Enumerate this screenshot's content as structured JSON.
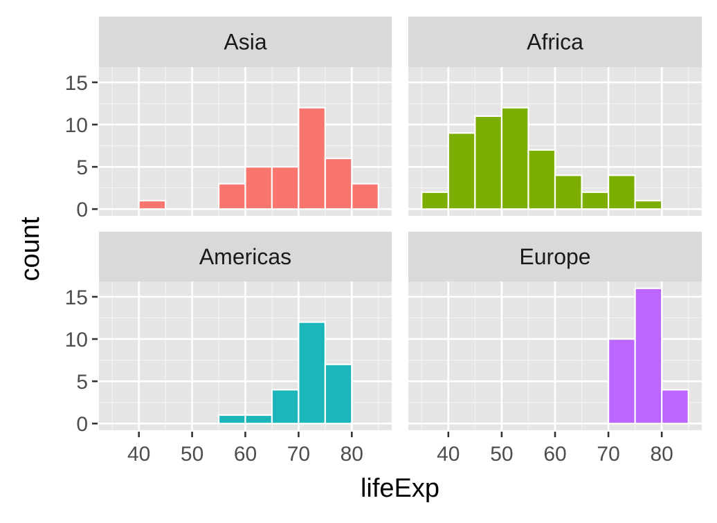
{
  "chart_data": {
    "type": "bar",
    "xlabel": "lifeExp",
    "ylabel": "count",
    "x_ticks": [
      40,
      50,
      60,
      70,
      80
    ],
    "y_ticks": [
      0,
      5,
      10,
      15
    ],
    "xlim": [
      32.5,
      87.5
    ],
    "ylim": [
      -0.8,
      16.8
    ],
    "bin_width": 5,
    "grid": true,
    "facets": [
      {
        "label": "Asia",
        "color": "#F8766D",
        "bins": [
          {
            "x0": 40,
            "x1": 45,
            "count": 1
          },
          {
            "x0": 55,
            "x1": 60,
            "count": 3
          },
          {
            "x0": 60,
            "x1": 65,
            "count": 5
          },
          {
            "x0": 65,
            "x1": 70,
            "count": 5
          },
          {
            "x0": 70,
            "x1": 75,
            "count": 12
          },
          {
            "x0": 75,
            "x1": 80,
            "count": 6
          },
          {
            "x0": 80,
            "x1": 85,
            "count": 3
          }
        ]
      },
      {
        "label": "Africa",
        "color": "#7CAE00",
        "bins": [
          {
            "x0": 35,
            "x1": 40,
            "count": 2
          },
          {
            "x0": 40,
            "x1": 45,
            "count": 9
          },
          {
            "x0": 45,
            "x1": 50,
            "count": 11
          },
          {
            "x0": 50,
            "x1": 55,
            "count": 12
          },
          {
            "x0": 55,
            "x1": 60,
            "count": 7
          },
          {
            "x0": 60,
            "x1": 65,
            "count": 4
          },
          {
            "x0": 65,
            "x1": 70,
            "count": 2
          },
          {
            "x0": 70,
            "x1": 75,
            "count": 4
          },
          {
            "x0": 75,
            "x1": 80,
            "count": 1
          }
        ]
      },
      {
        "label": "Americas",
        "color": "#1AB6BA",
        "bins": [
          {
            "x0": 55,
            "x1": 60,
            "count": 1
          },
          {
            "x0": 60,
            "x1": 65,
            "count": 1
          },
          {
            "x0": 65,
            "x1": 70,
            "count": 4
          },
          {
            "x0": 70,
            "x1": 75,
            "count": 12
          },
          {
            "x0": 75,
            "x1": 80,
            "count": 7
          }
        ]
      },
      {
        "label": "Europe",
        "color": "#BB66FF",
        "bins": [
          {
            "x0": 70,
            "x1": 75,
            "count": 10
          },
          {
            "x0": 75,
            "x1": 80,
            "count": 16
          },
          {
            "x0": 80,
            "x1": 85,
            "count": 4
          }
        ]
      }
    ]
  }
}
